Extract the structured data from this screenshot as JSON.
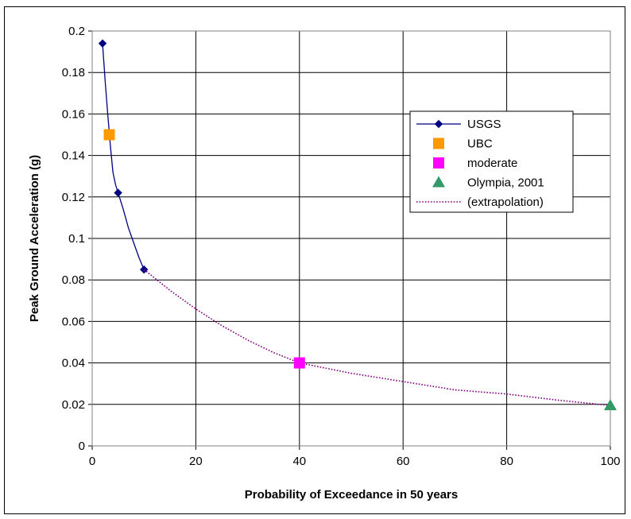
{
  "chart_data": {
    "type": "scatter",
    "xlabel": "Probability of Exceedance in 50 years",
    "ylabel": "Peak Ground Acceleration (g)",
    "xlim": [
      0,
      100
    ],
    "ylim": [
      0,
      0.2
    ],
    "xticks": [
      "0",
      "20",
      "40",
      "60",
      "80",
      "100"
    ],
    "yticks": [
      "0",
      "0.02",
      "0.04",
      "0.06",
      "0.08",
      "0.1",
      "0.12",
      "0.14",
      "0.16",
      "0.18",
      "0.2"
    ],
    "grid": true,
    "legend_position": "top-right",
    "series": [
      {
        "name": "USGS",
        "type": "line",
        "color": "#000080",
        "marker": "diamond",
        "x": [
          2,
          5,
          10
        ],
        "y": [
          0.194,
          0.122,
          0.085
        ],
        "curve_x": [
          2,
          2.5,
          3,
          3.5,
          4,
          4.5,
          5,
          6,
          7,
          8,
          9,
          10
        ],
        "curve_y": [
          0.194,
          0.176,
          0.16,
          0.145,
          0.132,
          0.126,
          0.122,
          0.114,
          0.105,
          0.098,
          0.091,
          0.085
        ]
      },
      {
        "name": "UBC",
        "type": "marker",
        "color": "#FF9900",
        "marker": "square",
        "x": [
          3.3
        ],
        "y": [
          0.15
        ]
      },
      {
        "name": "moderate",
        "type": "marker",
        "color": "#FF00FF",
        "marker": "square",
        "x": [
          40
        ],
        "y": [
          0.04
        ]
      },
      {
        "name": "Olympia, 2001",
        "type": "marker",
        "color": "#339966",
        "marker": "triangle",
        "x": [
          100
        ],
        "y": [
          0.0195
        ]
      },
      {
        "name": "(extrapolation)",
        "type": "dotted-line",
        "color": "#800080",
        "x": [
          10,
          15,
          20,
          25,
          30,
          35,
          40,
          50,
          60,
          70,
          80,
          90,
          100
        ],
        "y": [
          0.085,
          0.075,
          0.066,
          0.058,
          0.051,
          0.045,
          0.04,
          0.035,
          0.031,
          0.027,
          0.025,
          0.022,
          0.0195
        ]
      }
    ]
  }
}
